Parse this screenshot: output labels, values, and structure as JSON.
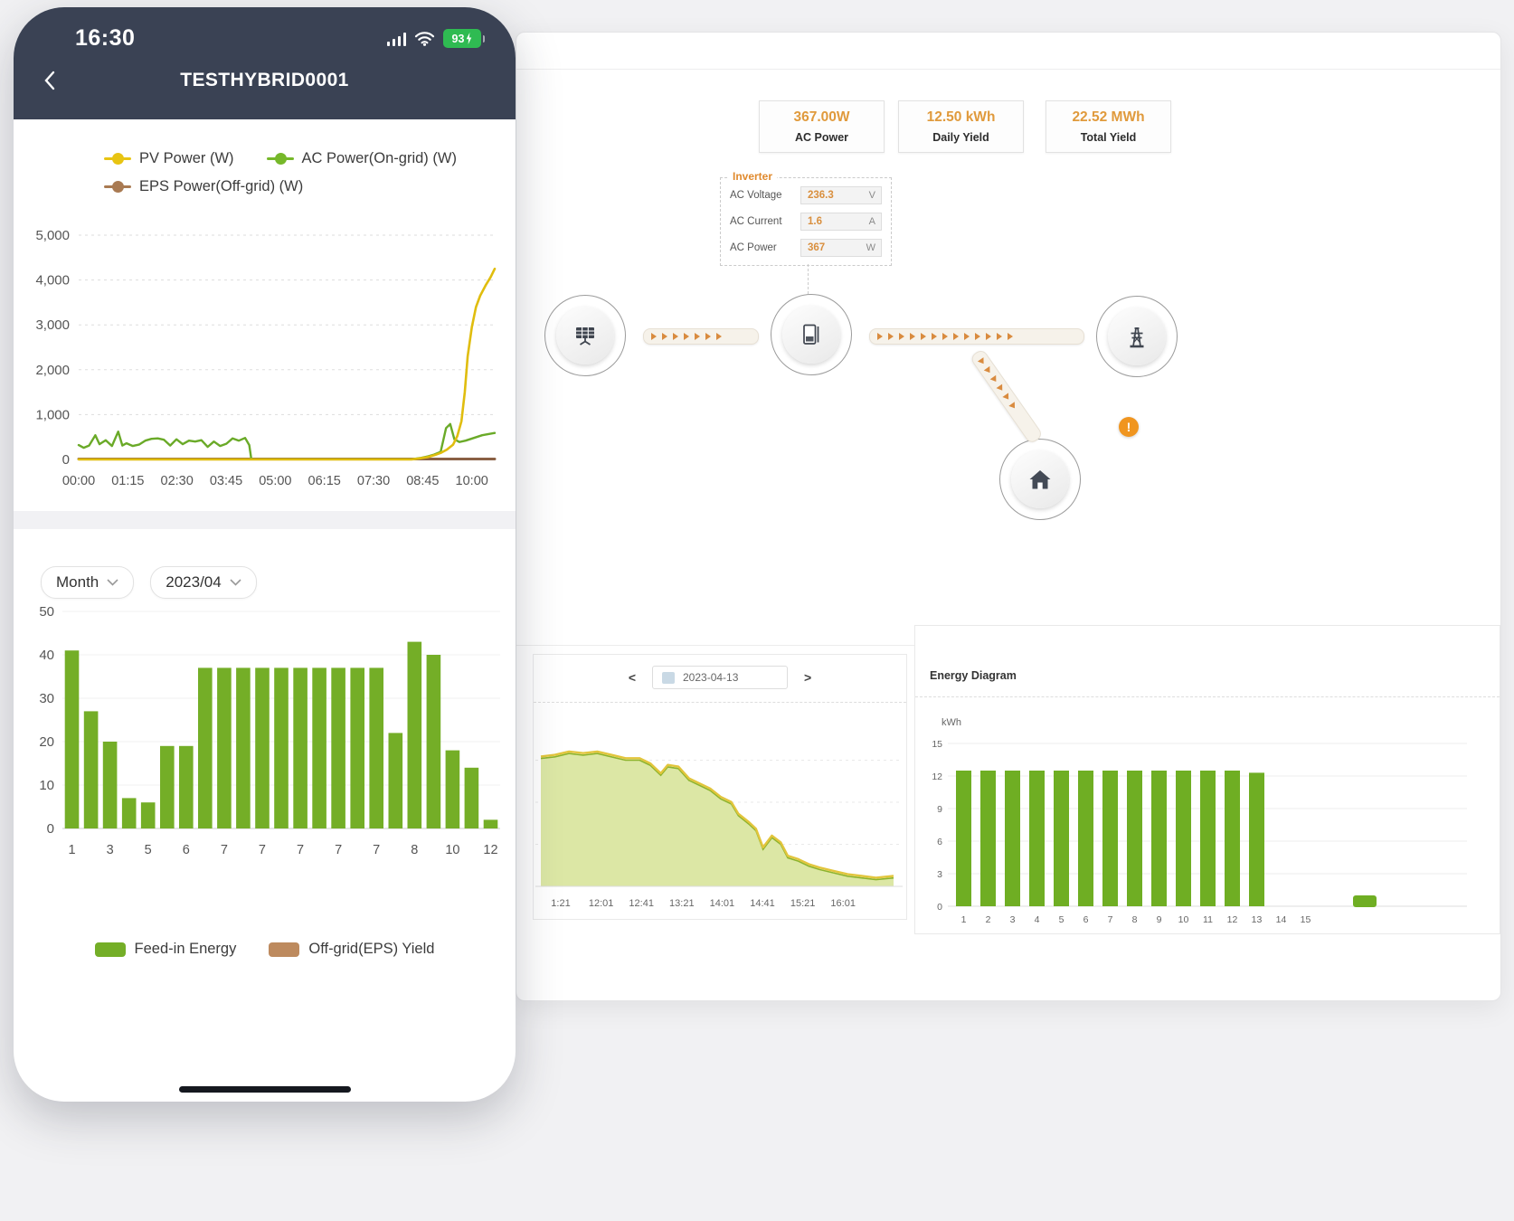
{
  "phone": {
    "status_bar": {
      "time": "16:30",
      "battery_percent": "93"
    },
    "nav": {
      "title": "TESTHYBRID0001"
    },
    "power_chart": {
      "type": "line",
      "ymax": 5000,
      "y_ticks": [
        "5,000",
        "4,000",
        "3,000",
        "2,000",
        "1,000",
        "0"
      ],
      "x_ticks": [
        "00:00",
        "01:15",
        "02:30",
        "03:45",
        "05:00",
        "06:15",
        "07:30",
        "08:45",
        "10:00"
      ],
      "legend": [
        {
          "label": "PV Power (W)",
          "color": "#e8c412"
        },
        {
          "label": "AC Power(On-grid) (W)",
          "color": "#76b82a"
        },
        {
          "label": "EPS Power(Off-grid) (W)",
          "color": "#a97a52"
        }
      ],
      "series": [
        {
          "name": "EPS Power(Off-grid) (W)",
          "color": "#8a6044",
          "width": 3,
          "points": [
            [
              0,
              10
            ],
            [
              1,
              10
            ]
          ]
        },
        {
          "name": "AC Power(On-grid) (W)",
          "color": "#6aaa28",
          "width": 2.4,
          "points": [
            [
              0,
              320
            ],
            [
              0.012,
              260
            ],
            [
              0.025,
              310
            ],
            [
              0.04,
              540
            ],
            [
              0.05,
              340
            ],
            [
              0.065,
              430
            ],
            [
              0.08,
              300
            ],
            [
              0.095,
              620
            ],
            [
              0.105,
              310
            ],
            [
              0.115,
              360
            ],
            [
              0.13,
              300
            ],
            [
              0.145,
              330
            ],
            [
              0.16,
              420
            ],
            [
              0.175,
              460
            ],
            [
              0.19,
              470
            ],
            [
              0.205,
              440
            ],
            [
              0.22,
              310
            ],
            [
              0.235,
              450
            ],
            [
              0.25,
              340
            ],
            [
              0.265,
              420
            ],
            [
              0.28,
              400
            ],
            [
              0.295,
              430
            ],
            [
              0.31,
              280
            ],
            [
              0.325,
              400
            ],
            [
              0.34,
              300
            ],
            [
              0.355,
              350
            ],
            [
              0.37,
              470
            ],
            [
              0.385,
              420
            ],
            [
              0.4,
              480
            ],
            [
              0.41,
              320
            ],
            [
              0.415,
              5
            ],
            [
              0.42,
              5
            ],
            [
              0.8,
              5
            ],
            [
              0.82,
              30
            ],
            [
              0.84,
              70
            ],
            [
              0.855,
              110
            ],
            [
              0.87,
              170
            ],
            [
              0.883,
              700
            ],
            [
              0.893,
              790
            ],
            [
              0.903,
              450
            ],
            [
              0.915,
              390
            ],
            [
              0.93,
              420
            ],
            [
              0.95,
              480
            ],
            [
              0.97,
              540
            ],
            [
              1,
              590
            ]
          ]
        },
        {
          "name": "PV Power (W)",
          "color": "#e0bd0e",
          "width": 2.6,
          "points": [
            [
              0,
              2
            ],
            [
              0.8,
              2
            ],
            [
              0.82,
              25
            ],
            [
              0.84,
              55
            ],
            [
              0.855,
              95
            ],
            [
              0.87,
              145
            ],
            [
              0.885,
              220
            ],
            [
              0.9,
              330
            ],
            [
              0.91,
              520
            ],
            [
              0.92,
              850
            ],
            [
              0.928,
              1500
            ],
            [
              0.935,
              2300
            ],
            [
              0.945,
              2950
            ],
            [
              0.955,
              3400
            ],
            [
              0.965,
              3650
            ],
            [
              0.978,
              3880
            ],
            [
              0.99,
              4060
            ],
            [
              1,
              4250
            ]
          ]
        }
      ]
    },
    "filters": {
      "period": "Month",
      "month": "2023/04"
    },
    "monthly_chart": {
      "type": "bar",
      "ymax": 50,
      "y_ticks": [
        "50",
        "40",
        "30",
        "20",
        "10",
        "0"
      ],
      "values": [
        41,
        27,
        20,
        7,
        6,
        19,
        19,
        37,
        37,
        37,
        37,
        37,
        37,
        37,
        37,
        37,
        37,
        22,
        43,
        40,
        18,
        14,
        2
      ],
      "x_labels": [
        "1",
        "3",
        "5",
        "6",
        "7",
        "7",
        "7",
        "7",
        "7",
        "8",
        "10",
        "12"
      ],
      "bar_color": "#74ae27",
      "legend": [
        {
          "label": "Feed-in Energy",
          "color": "#74ae27"
        },
        {
          "label": "Off-grid(EPS) Yield",
          "color": "#bd8a5e"
        }
      ]
    }
  },
  "desktop": {
    "stats": [
      {
        "value": "367.00W",
        "label": "AC Power"
      },
      {
        "value": "12.50 kWh",
        "label": "Daily Yield"
      },
      {
        "value": "22.52 MWh",
        "label": "Total Yield"
      }
    ],
    "inverter": {
      "title": "Inverter",
      "rows": [
        {
          "label": "AC Voltage",
          "value": "236.3",
          "unit": "V"
        },
        {
          "label": "AC Current",
          "value": "1.6",
          "unit": "A"
        },
        {
          "label": "AC Power",
          "value": "367",
          "unit": "W"
        }
      ]
    },
    "flow": {
      "nodes": [
        "solar-panels",
        "inverter",
        "power-grid",
        "home"
      ],
      "warning": "!"
    },
    "day_chart": {
      "type": "area",
      "prev": "<",
      "next": ">",
      "date": "2023-04-13",
      "x_ticks": [
        "1:21",
        "12:01",
        "12:41",
        "13:21",
        "14:01",
        "14:41",
        "15:21",
        "16:01"
      ],
      "fill": "#dce7a5",
      "line_top": "#e2c53c",
      "line_under": "#8db32c",
      "profile": [
        [
          0,
          0.76
        ],
        [
          0.04,
          0.77
        ],
        [
          0.08,
          0.79
        ],
        [
          0.12,
          0.78
        ],
        [
          0.16,
          0.79
        ],
        [
          0.2,
          0.77
        ],
        [
          0.24,
          0.75
        ],
        [
          0.28,
          0.75
        ],
        [
          0.31,
          0.72
        ],
        [
          0.34,
          0.66
        ],
        [
          0.36,
          0.71
        ],
        [
          0.39,
          0.7
        ],
        [
          0.42,
          0.63
        ],
        [
          0.45,
          0.6
        ],
        [
          0.48,
          0.57
        ],
        [
          0.51,
          0.52
        ],
        [
          0.54,
          0.49
        ],
        [
          0.56,
          0.42
        ],
        [
          0.59,
          0.37
        ],
        [
          0.61,
          0.33
        ],
        [
          0.63,
          0.22
        ],
        [
          0.655,
          0.29
        ],
        [
          0.68,
          0.25
        ],
        [
          0.7,
          0.17
        ],
        [
          0.73,
          0.15
        ],
        [
          0.76,
          0.12
        ],
        [
          0.79,
          0.1
        ],
        [
          0.83,
          0.08
        ],
        [
          0.87,
          0.06
        ],
        [
          0.91,
          0.05
        ],
        [
          0.95,
          0.04
        ],
        [
          1,
          0.05
        ]
      ]
    },
    "energy_diagram": {
      "type": "bar",
      "title": "Energy Diagram",
      "unit": "kWh",
      "ymax": 15,
      "y_ticks": [
        "15",
        "12",
        "9",
        "6",
        "3",
        "0"
      ],
      "x_labels": [
        "1",
        "2",
        "3",
        "4",
        "5",
        "6",
        "7",
        "8",
        "9",
        "10",
        "11",
        "12",
        "13",
        "14",
        "15"
      ],
      "values": [
        12.5,
        12.5,
        12.5,
        12.5,
        12.5,
        12.5,
        12.5,
        12.5,
        12.5,
        12.5,
        12.5,
        12.5,
        12.3
      ],
      "bar_color": "#6fae23"
    }
  }
}
